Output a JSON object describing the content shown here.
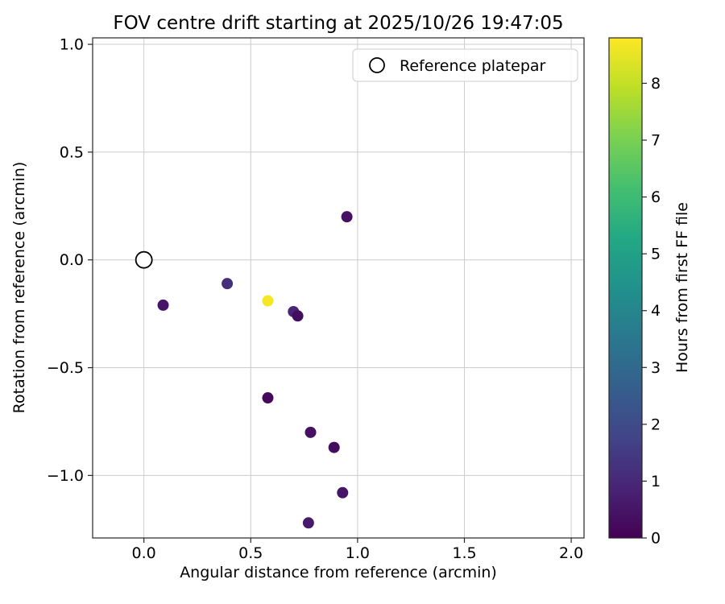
{
  "figure": {
    "background": "#ffffff"
  },
  "chart_data": {
    "type": "scatter",
    "title": "FOV centre drift starting at 2025/10/26 19:47:05",
    "xlabel": "Angular distance from reference (arcmin)",
    "ylabel": "Rotation from reference (arcmin)",
    "xlim": [
      -0.24,
      2.06
    ],
    "ylim": [
      -1.29,
      1.03
    ],
    "xticks": [
      0.0,
      0.5,
      1.0,
      1.5,
      2.0
    ],
    "yticks": [
      1.0,
      0.5,
      0.0,
      -0.5,
      -1.0
    ],
    "grid": true,
    "legend": {
      "position": "upper right",
      "entries": [
        {
          "label": "Reference platepar",
          "marker": "open-circle"
        }
      ]
    },
    "reference_point": {
      "x": 0.0,
      "y": 0.0
    },
    "points": [
      {
        "x": 0.95,
        "y": 0.2,
        "hours": 0.4
      },
      {
        "x": 0.39,
        "y": -0.11,
        "hours": 1.2
      },
      {
        "x": 0.09,
        "y": -0.21,
        "hours": 0.5
      },
      {
        "x": 0.7,
        "y": -0.24,
        "hours": 0.9
      },
      {
        "x": 0.72,
        "y": -0.26,
        "hours": 0.3
      },
      {
        "x": 0.58,
        "y": -0.64,
        "hours": 0.2
      },
      {
        "x": 0.78,
        "y": -0.8,
        "hours": 0.4
      },
      {
        "x": 0.89,
        "y": -0.87,
        "hours": 0.3
      },
      {
        "x": 0.93,
        "y": -1.08,
        "hours": 0.5
      },
      {
        "x": 0.77,
        "y": -1.22,
        "hours": 0.6
      },
      {
        "x": 0.58,
        "y": -0.19,
        "hours": 8.7
      }
    ],
    "colorbar": {
      "label": "Hours from first FF file",
      "vmin": 0,
      "vmax": 8.8,
      "ticks": [
        0,
        1,
        2,
        3,
        4,
        5,
        6,
        7,
        8
      ],
      "colormap": "viridis",
      "stops": [
        "#440154",
        "#482475",
        "#414487",
        "#355f8d",
        "#2a788e",
        "#21918c",
        "#22a884",
        "#44bf70",
        "#7ad151",
        "#bddf26",
        "#fde725"
      ]
    },
    "colors": {
      "grid": "#cccccc",
      "frame": "#262626",
      "reference_marker_edge": "#000000"
    }
  }
}
